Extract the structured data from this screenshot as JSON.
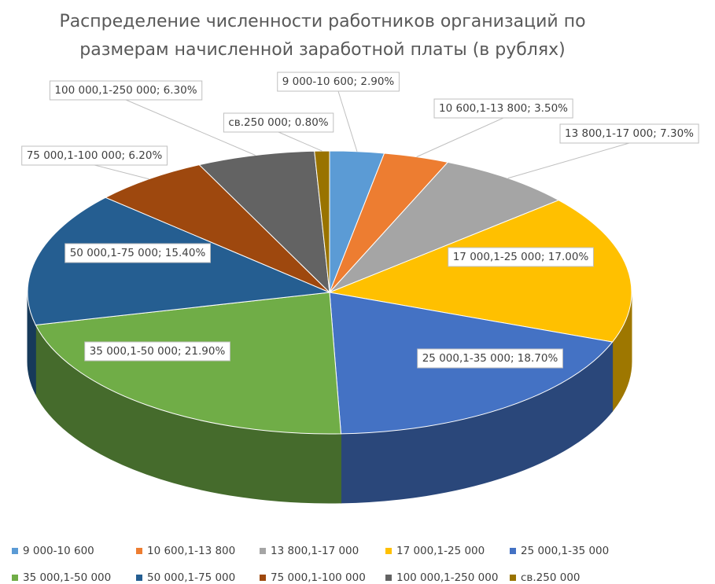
{
  "chart_data": {
    "type": "pie3d",
    "title": "Распределение численности работников организаций по размерам начисленной заработной платы (в рублях)",
    "categories": [
      "9 000-10 600",
      "10 600,1-13 800",
      "13 800,1-17 000",
      "17 000,1-25 000",
      "25 000,1-35 000",
      "35 000,1-50 000",
      "50 000,1-75 000",
      "75 000,1-100 000",
      "100 000,1-250 000",
      "св.250 000"
    ],
    "values": [
      2.9,
      3.5,
      7.3,
      17.0,
      18.7,
      21.9,
      15.4,
      6.2,
      6.3,
      0.8
    ],
    "value_labels": [
      "2.90%",
      "3.50%",
      "7.30%",
      "17.00%",
      "18.70%",
      "21.90%",
      "15.40%",
      "6.20%",
      "6.30%",
      "0.80%"
    ],
    "colors": [
      "#5b9bd5",
      "#ed7d31",
      "#a5a5a5",
      "#ffc000",
      "#4472c4",
      "#70ad47",
      "#255e91",
      "#9e480e",
      "#636363",
      "#997300"
    ],
    "legend": "bottom"
  }
}
